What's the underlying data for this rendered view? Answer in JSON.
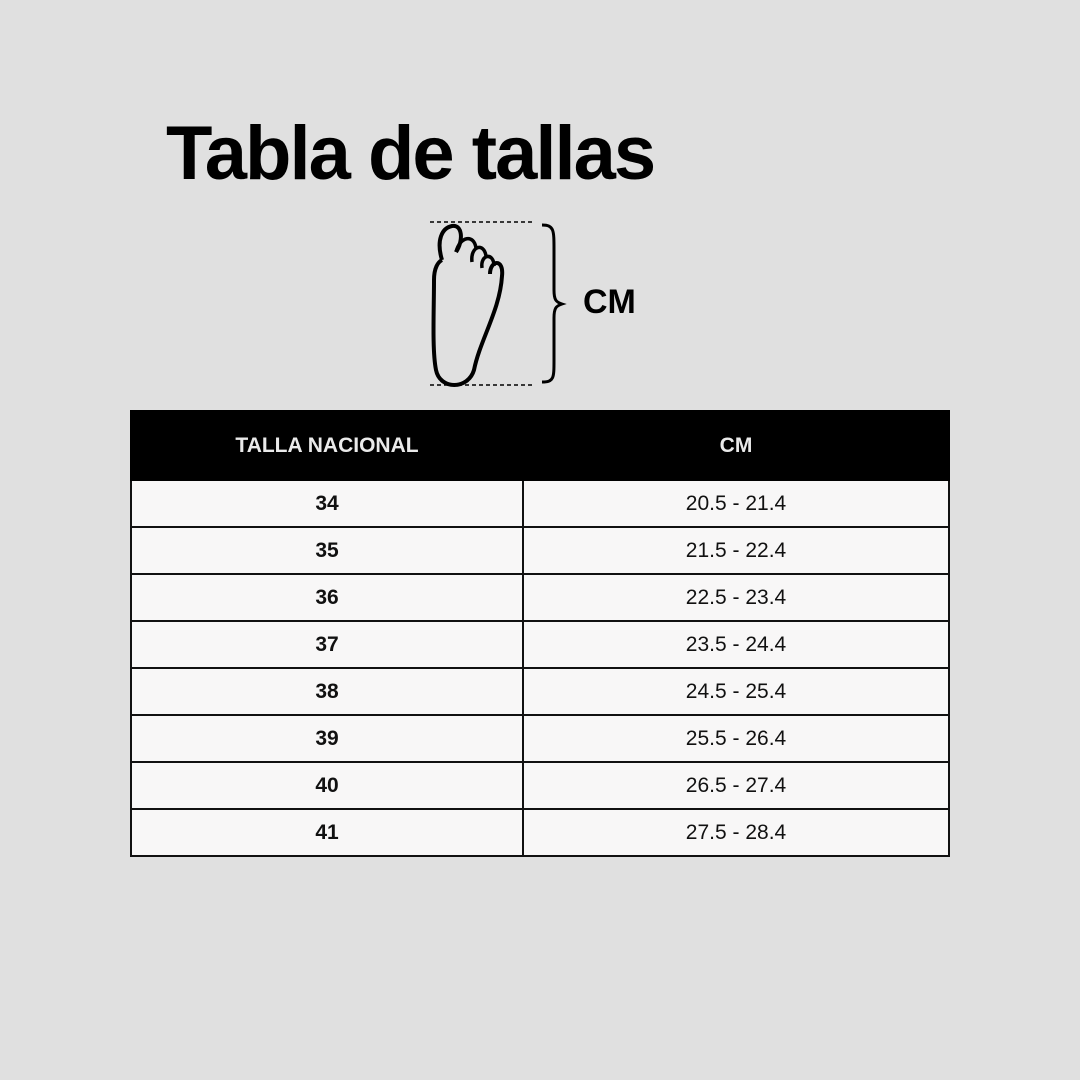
{
  "title": "Tabla de tallas",
  "diagram": {
    "icon": "foot-length-icon",
    "label": "CM"
  },
  "table": {
    "headers": [
      "TALLA NACIONAL",
      "CM"
    ],
    "rows": [
      {
        "size": "34",
        "cm": "20.5 - 21.4"
      },
      {
        "size": "35",
        "cm": "21.5 - 22.4"
      },
      {
        "size": "36",
        "cm": "22.5 - 23.4"
      },
      {
        "size": "37",
        "cm": "23.5 - 24.4"
      },
      {
        "size": "38",
        "cm": "24.5 - 25.4"
      },
      {
        "size": "39",
        "cm": "25.5 - 26.4"
      },
      {
        "size": "40",
        "cm": "26.5 - 27.4"
      },
      {
        "size": "41",
        "cm": "27.5 - 28.4"
      }
    ]
  },
  "colors": {
    "background": "#e0e0e0",
    "header": "#000000",
    "cell": "#f8f7f7"
  }
}
